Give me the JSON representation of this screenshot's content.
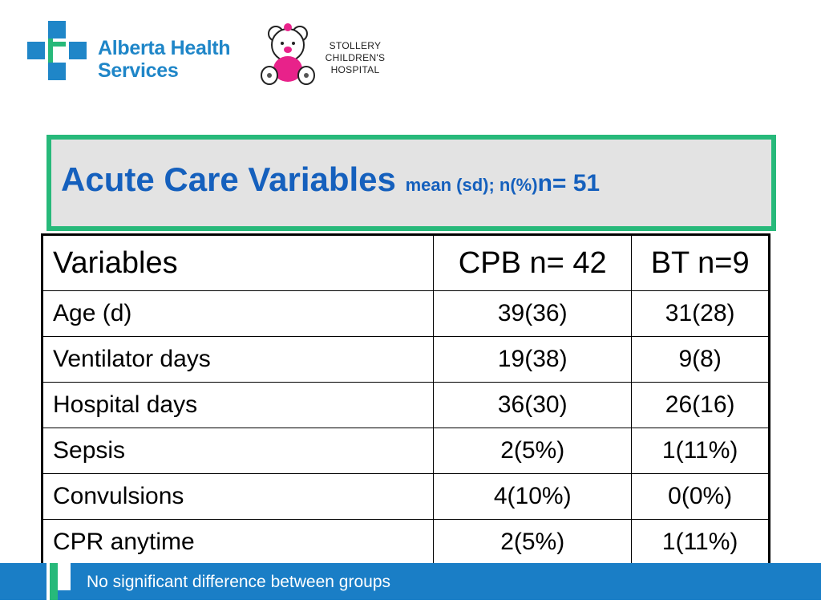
{
  "logos": {
    "ahs_text_line1": "Alberta Health",
    "ahs_text_line2": "Services",
    "stollery_line1": "STOLLERY",
    "stollery_line2": "CHILDREN'S",
    "stollery_line3": "HOSPITAL",
    "ahs_color": "#1f86c8",
    "stollery_color": "#e8228a"
  },
  "title": {
    "main": "Acute Care Variables ",
    "sub": "mean (sd); n(%)",
    "n": "n= 51"
  },
  "table": {
    "headers": [
      "Variables",
      "CPB n= 42",
      "BT n=9"
    ],
    "rows": [
      [
        "Age (d)",
        "39(36)",
        "31(28)"
      ],
      [
        "Ventilator days",
        "19(38)",
        "9(8)"
      ],
      [
        "Hospital days",
        "36(30)",
        "26(16)"
      ],
      [
        "Sepsis",
        "2(5%)",
        "1(11%)"
      ],
      [
        "Convulsions",
        "4(10%)",
        "0(0%)"
      ],
      [
        "CPR anytime",
        "2(5%)",
        "1(11%)"
      ]
    ]
  },
  "footer": {
    "text": "No significant difference between groups",
    "color": "#1a7ec6"
  },
  "colors": {
    "title_border": "#27b97a",
    "title_text": "#1560bd"
  }
}
